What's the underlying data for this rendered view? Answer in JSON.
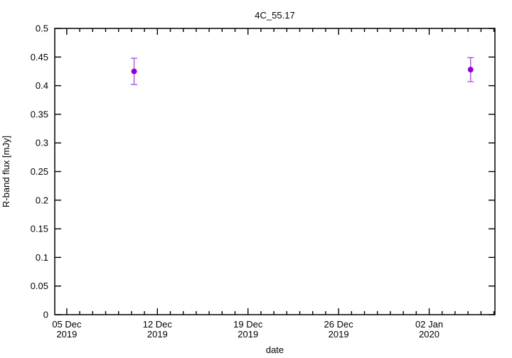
{
  "window": {
    "background": "#ffffff",
    "kind": "plot-figure"
  },
  "colors": {
    "axis": "#000000",
    "text": "#000000",
    "background": "#ffffff",
    "point": "#9400d3",
    "errorbar": "#b468e0"
  },
  "chart_data": {
    "type": "scatter",
    "style": "points with vertical error bars (gnuplot)",
    "title": "4C_55.17",
    "xlabel": "date",
    "ylabel": "R-band flux [mJy]",
    "grid": false,
    "legend": "none",
    "x_axis": {
      "kind": "time",
      "units": "days since 05 Dec 2019",
      "domain_days": [
        -0.93,
        33.08
      ],
      "minor_tick_every_days": 1,
      "major_ticks": [
        {
          "day": 0,
          "label_line1": "05 Dec",
          "label_line2": "2019"
        },
        {
          "day": 7,
          "label_line1": "12 Dec",
          "label_line2": "2019"
        },
        {
          "day": 14,
          "label_line1": "19 Dec",
          "label_line2": "2019"
        },
        {
          "day": 21,
          "label_line1": "26 Dec",
          "label_line2": "2019"
        },
        {
          "day": 28,
          "label_line1": "02 Jan",
          "label_line2": "2020"
        }
      ]
    },
    "y_axis": {
      "min": 0,
      "max": 0.5,
      "tick_interval": 0.05,
      "ticks": [
        {
          "value": 0,
          "label": "0"
        },
        {
          "value": 0.05,
          "label": "0.05"
        },
        {
          "value": 0.1,
          "label": "0.1"
        },
        {
          "value": 0.15,
          "label": "0.15"
        },
        {
          "value": 0.2,
          "label": "0.2"
        },
        {
          "value": 0.25,
          "label": "0.25"
        },
        {
          "value": 0.3,
          "label": "0.3"
        },
        {
          "value": 0.35,
          "label": "0.35"
        },
        {
          "value": 0.4,
          "label": "0.4"
        },
        {
          "value": 0.45,
          "label": "0.45"
        },
        {
          "value": 0.5,
          "label": "0.5"
        }
      ]
    },
    "series": [
      {
        "name": "R-band flux",
        "point_color": "#9400d3",
        "errorbar_color": "#b468e0",
        "points": [
          {
            "x_day": 5.2,
            "approx_date": "10 Dec 2019",
            "y": 0.425,
            "yerr": 0.023
          },
          {
            "x_day": 31.2,
            "approx_date": "05 Jan 2020",
            "y": 0.428,
            "yerr": 0.021
          }
        ]
      }
    ]
  }
}
